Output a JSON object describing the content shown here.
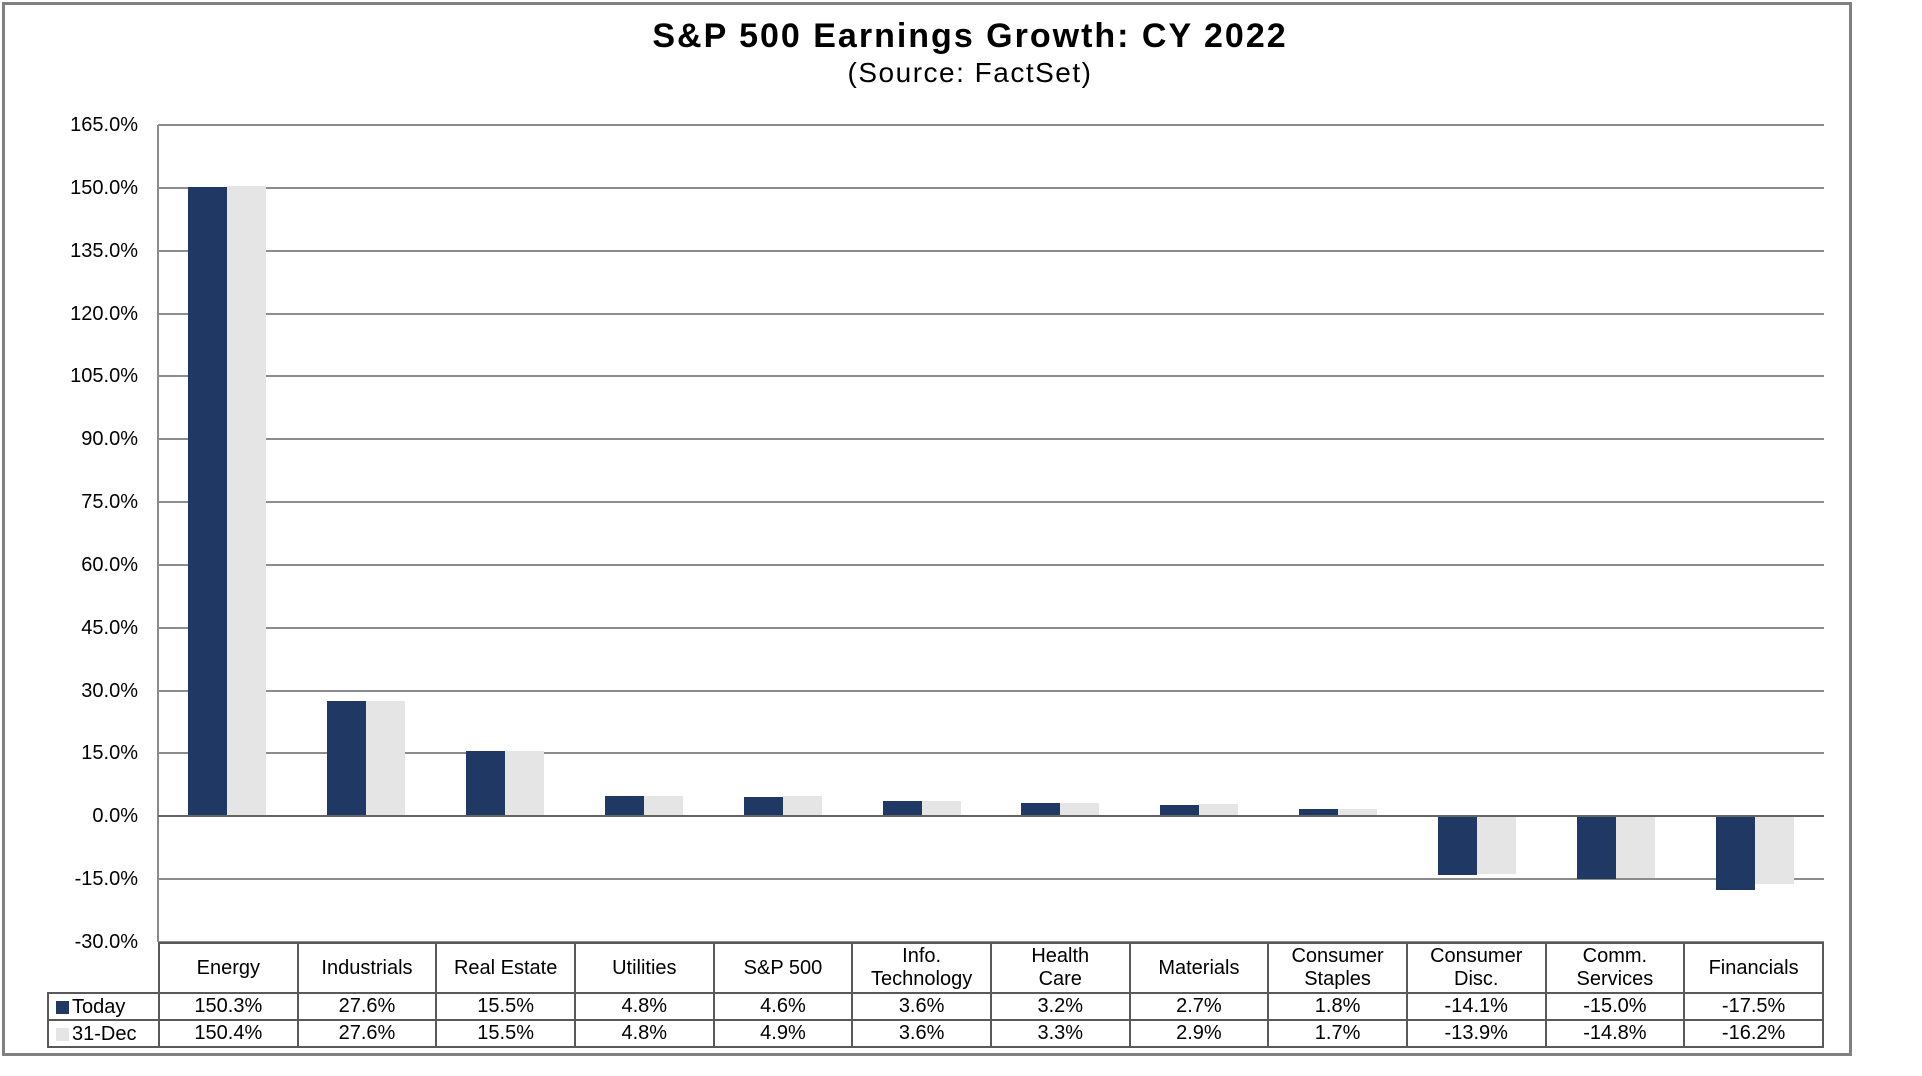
{
  "title": "S&P 500 Earnings Growth: CY 2022",
  "subtitle": "(Source: FactSet)",
  "chart_data": {
    "type": "bar",
    "title": "S&P 500 Earnings Growth: CY 2022",
    "subtitle": "(Source: FactSet)",
    "categories": [
      "Energy",
      "Industrials",
      "Real Estate",
      "Utilities",
      "S&P 500",
      "Info. Technology",
      "Health Care",
      "Materials",
      "Consumer Staples",
      "Consumer Disc.",
      "Comm. Services",
      "Financials"
    ],
    "categories_display": [
      "Energy",
      "Industrials",
      "Real Estate",
      "Utilities",
      "S&P 500",
      "Info.\nTechnology",
      "Health\nCare",
      "Materials",
      "Consumer\nStaples",
      "Consumer\nDisc.",
      "Comm.\nServices",
      "Financials"
    ],
    "series": [
      {
        "name": "Today",
        "color": "#1F3864",
        "values": [
          150.3,
          27.6,
          15.5,
          4.8,
          4.6,
          3.6,
          3.2,
          2.7,
          1.8,
          -14.1,
          -15.0,
          -17.5
        ]
      },
      {
        "name": "31-Dec",
        "color": "#E5E5E5",
        "values": [
          150.4,
          27.6,
          15.5,
          4.8,
          4.9,
          3.6,
          3.3,
          2.9,
          1.7,
          -13.9,
          -14.8,
          -16.2
        ]
      }
    ],
    "ylim": [
      -30,
      165
    ],
    "ytick_step": 15,
    "ytick_labels": [
      "165.0%",
      "150.0%",
      "135.0%",
      "120.0%",
      "105.0%",
      "90.0%",
      "75.0%",
      "60.0%",
      "45.0%",
      "30.0%",
      "15.0%",
      "0.0%",
      "-15.0%",
      "-30.0%"
    ],
    "value_suffix": "%",
    "value_decimals": 1,
    "grid": true,
    "legend_position": "data-table-left",
    "colors": {
      "bar_today": "#1F3864",
      "bar_31dec": "#E5E5E5",
      "gridline": "#8C8C8C",
      "zero_axis": "#646464",
      "table_border": "#595959",
      "frame_border": "#808080",
      "text": "#000000",
      "background": "#FFFFFF"
    }
  }
}
